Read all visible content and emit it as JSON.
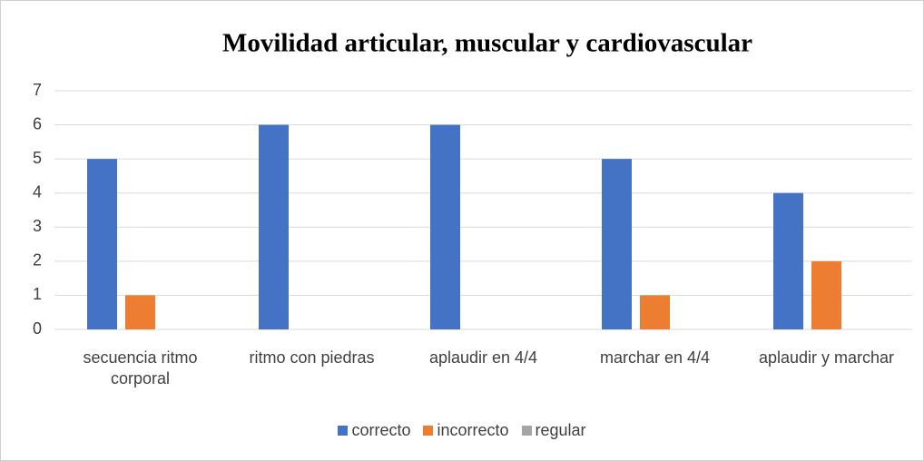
{
  "chart_data": {
    "type": "bar",
    "title": "Movilidad articular, muscular y cardiovascular",
    "categories": [
      "secuencia ritmo corporal",
      "ritmo con piedras",
      "aplaudir en 4/4",
      "marchar en 4/4",
      "aplaudir y marchar"
    ],
    "series": [
      {
        "name": "correcto",
        "color": "#4472c4",
        "values": [
          5,
          6,
          6,
          5,
          4
        ]
      },
      {
        "name": "incorrecto",
        "color": "#ed7d31",
        "values": [
          1,
          0,
          0,
          1,
          2
        ]
      },
      {
        "name": "regular",
        "color": "#a5a5a5",
        "values": [
          0,
          0,
          0,
          0,
          0
        ]
      }
    ],
    "ylim": [
      0,
      7
    ],
    "yticks": [
      0,
      1,
      2,
      3,
      4,
      5,
      6,
      7
    ],
    "grid": true,
    "legend": "bottom"
  }
}
